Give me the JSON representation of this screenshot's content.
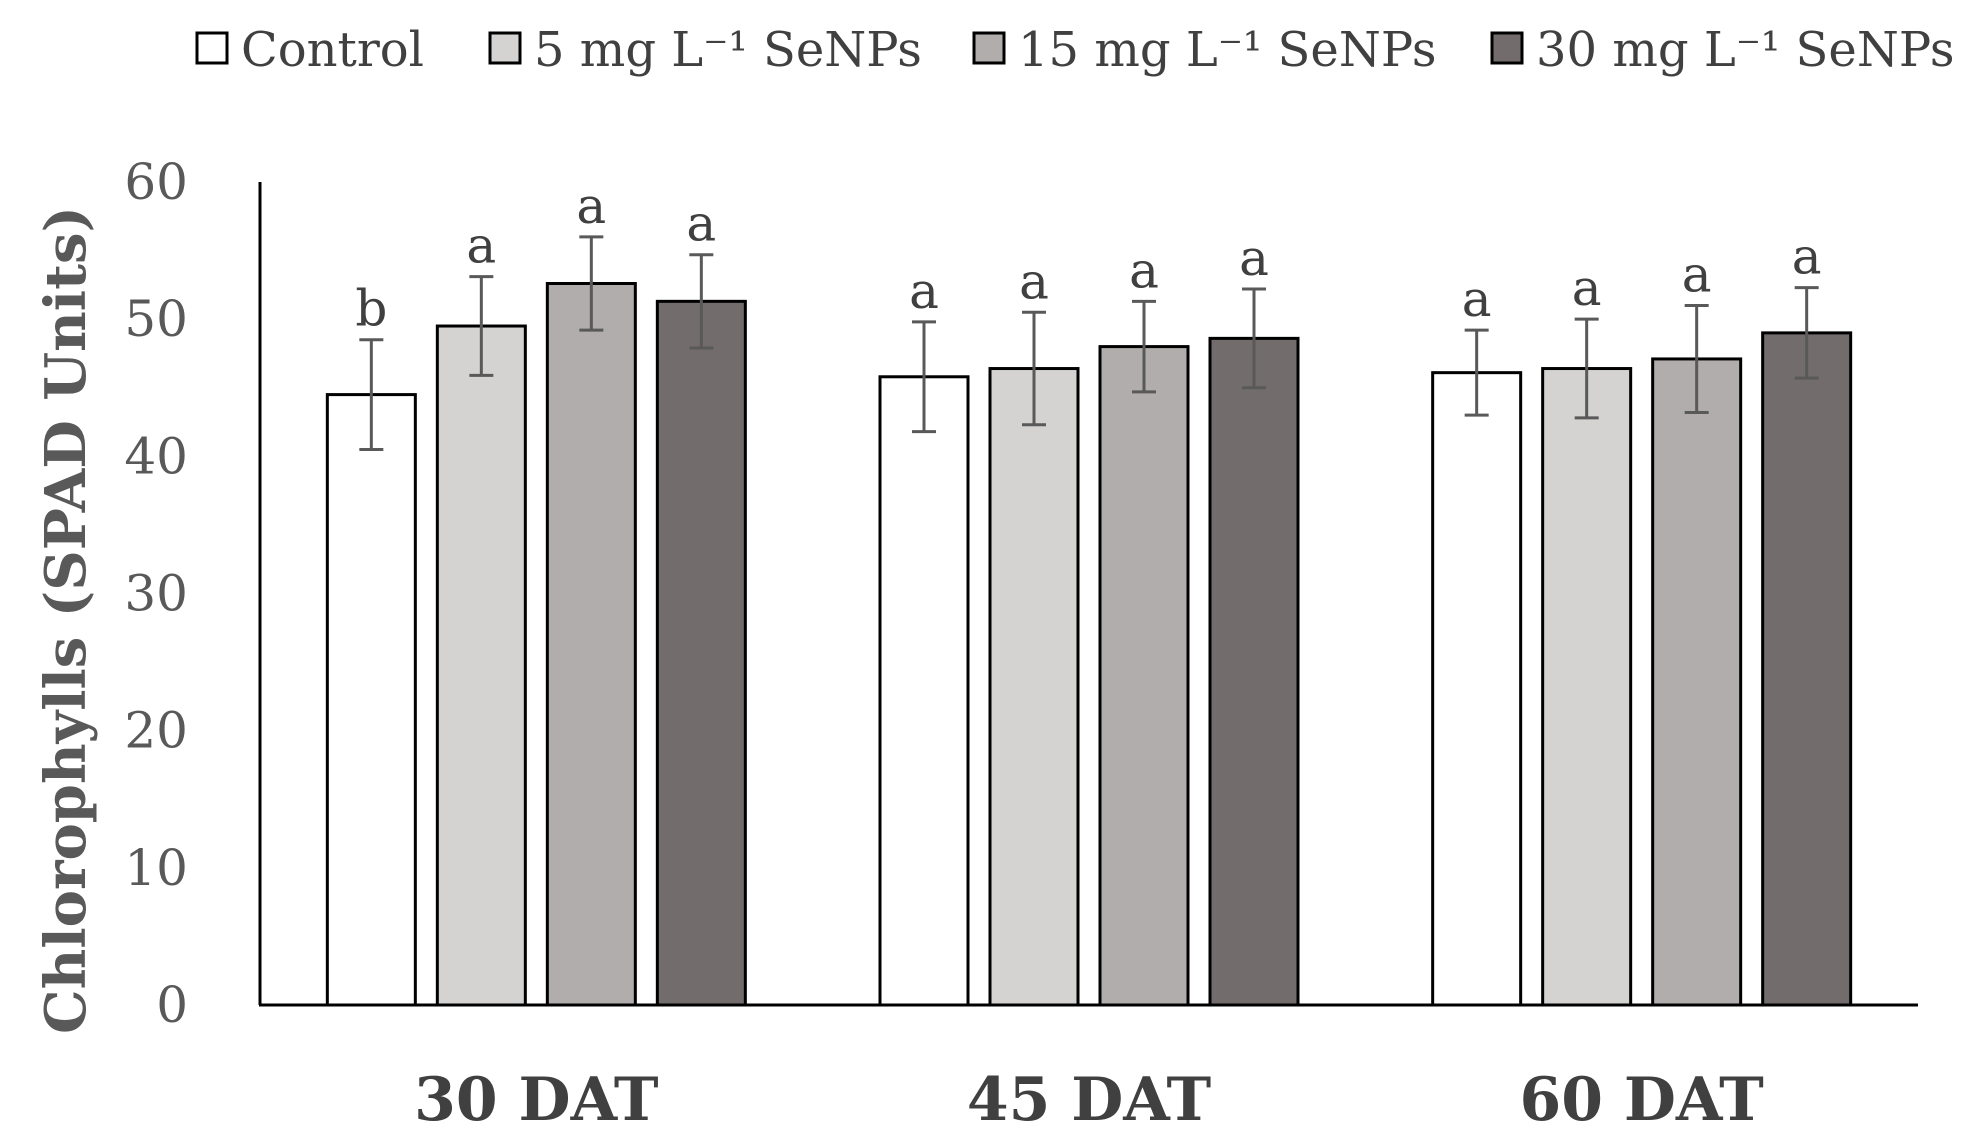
{
  "chart_data": {
    "type": "bar",
    "title": "",
    "xlabel": "",
    "ylabel": "Chlorophylls (SPAD Units)",
    "ylim": [
      0,
      60
    ],
    "yticks": [
      0,
      10,
      20,
      30,
      40,
      50,
      60
    ],
    "grid": false,
    "legend_position": "top",
    "categories": [
      "30 DAT",
      "45 DAT",
      "60 DAT"
    ],
    "series": [
      {
        "name": "Control",
        "color": "#ffffff",
        "values": [
          44.5,
          45.8,
          46.1
        ],
        "errors": [
          4.0,
          4.0,
          3.1
        ],
        "labels": [
          "b",
          "a",
          "a"
        ]
      },
      {
        "name": "5 mg L⁻¹ SeNPs",
        "color": "#d4d3d2",
        "values": [
          49.5,
          46.4,
          46.4
        ],
        "errors": [
          3.6,
          4.1,
          3.6
        ],
        "labels": [
          "a",
          "a",
          "a"
        ]
      },
      {
        "name": "15 mg L⁻¹ SeNPs",
        "color": "#b1adac",
        "values": [
          52.6,
          48.0,
          47.1
        ],
        "errors": [
          3.4,
          3.3,
          3.9
        ],
        "labels": [
          "a",
          "a",
          "a"
        ]
      },
      {
        "name": "30 mg L⁻¹ SeNPs",
        "color": "#726c6c",
        "values": [
          51.3,
          48.6,
          49.0
        ],
        "errors": [
          3.4,
          3.6,
          3.3
        ],
        "labels": [
          "a",
          "a",
          "a"
        ]
      }
    ]
  }
}
